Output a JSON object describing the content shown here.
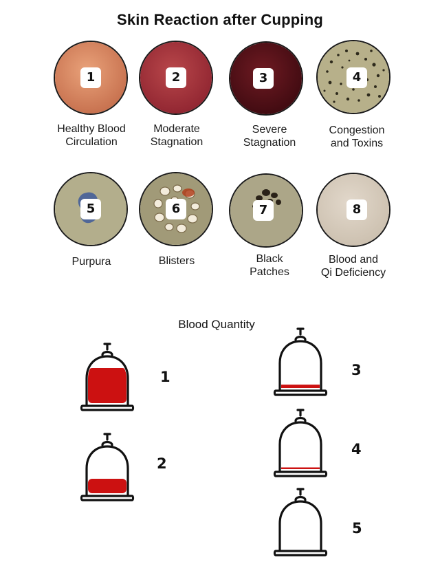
{
  "title": "Skin Reaction after Cupping",
  "reactions": [
    {
      "number": "1",
      "label_line1": "Healthy Blood",
      "label_line2": "Circulation",
      "color": "#d98a63"
    },
    {
      "number": "2",
      "label_line1": "Moderate",
      "label_line2": "Stagnation",
      "color": "#a8343a"
    },
    {
      "number": "3",
      "label_line1": "Severe",
      "label_line2": "Stagnation",
      "color": "#5b1219"
    },
    {
      "number": "4",
      "label_line1": "Congestion",
      "label_line2": "and Toxins",
      "color": "#b9b08a"
    },
    {
      "number": "5",
      "label_line1": "Purpura",
      "label_line2": "",
      "color": "#b2ae8c"
    },
    {
      "number": "6",
      "label_line1": "Blisters",
      "label_line2": "",
      "color": "#a39c7a"
    },
    {
      "number": "7",
      "label_line1": "Black",
      "label_line2": "Patches",
      "color": "#aea88a"
    },
    {
      "number": "8",
      "label_line1": "Blood and",
      "label_line2": "Qi Deficiency",
      "color": "#dad0c2"
    }
  ],
  "blood_quantity": {
    "title": "Blood Quantity",
    "blood_color": "#cc1111",
    "cups": [
      {
        "number": "1",
        "fill_level": 0.85
      },
      {
        "number": "2",
        "fill_level": 0.35
      },
      {
        "number": "3",
        "fill_level": 0.08
      },
      {
        "number": "4",
        "fill_level": 0.03
      },
      {
        "number": "5",
        "fill_level": 0
      }
    ]
  }
}
